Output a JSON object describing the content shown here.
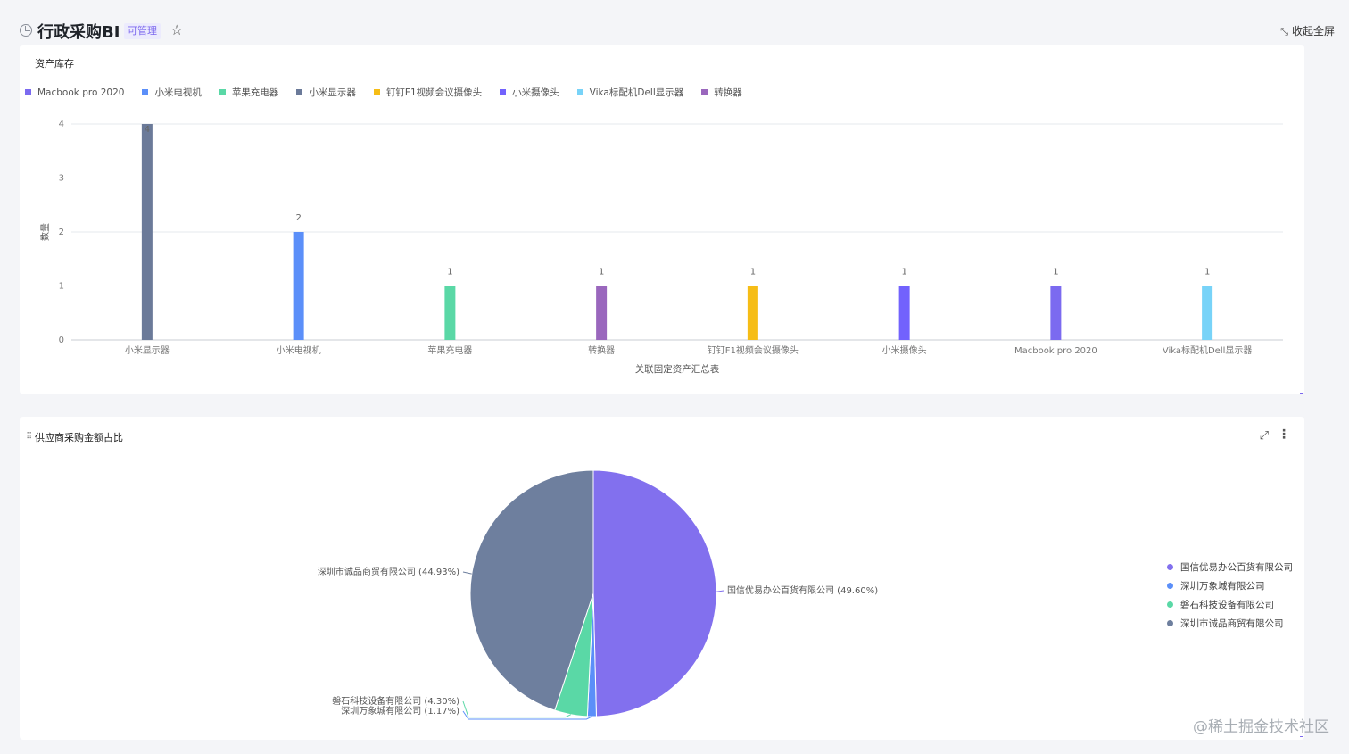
{
  "header": {
    "title": "行政采购BI",
    "badge": "可管理",
    "collapse_label": "收起全屏",
    "icons": {
      "title": "clock-icon",
      "star": "star-icon",
      "collapse": "collapse-icon"
    }
  },
  "bar_card": {
    "title": "资产库存"
  },
  "pie_card": {
    "title": "供应商采购金额占比"
  },
  "watermark": "@稀土掘金技术社区",
  "chart_data": [
    {
      "type": "bar",
      "title": "资产库存",
      "xlabel": "关联固定资产汇总表",
      "ylabel": "数量",
      "ylim": [
        0,
        4
      ],
      "yticks": [
        0,
        1,
        2,
        3,
        4
      ],
      "grid": true,
      "legend_position": "top-left",
      "categories": [
        "小米显示器",
        "小米电视机",
        "苹果充电器",
        "转换器",
        "钉钉F1视频会议摄像头",
        "小米摄像头",
        "Macbook pro 2020",
        "Vika标配机Dell显示器"
      ],
      "values": [
        4,
        2,
        1,
        1,
        1,
        1,
        1,
        1
      ],
      "bar_colors": [
        "#6b7a99",
        "#5b8ff9",
        "#5ad8a6",
        "#9a67bd",
        "#f6bd16",
        "#7262fd",
        "#7b6af0",
        "#78d3f8"
      ],
      "legend": [
        {
          "name": "Macbook pro 2020",
          "color": "#7b6af0"
        },
        {
          "name": "小米电视机",
          "color": "#5b8ff9"
        },
        {
          "name": "苹果充电器",
          "color": "#5ad8a6"
        },
        {
          "name": "小米显示器",
          "color": "#6b7a99"
        },
        {
          "name": "钉钉F1视频会议摄像头",
          "color": "#f6bd16"
        },
        {
          "name": "小米摄像头",
          "color": "#7262fd"
        },
        {
          "name": "Vika标配机Dell显示器",
          "color": "#78d3f8"
        },
        {
          "name": "转换器",
          "color": "#9a67bd"
        }
      ]
    },
    {
      "type": "pie",
      "title": "供应商采购金额占比",
      "legend_position": "right",
      "slices": [
        {
          "name": "国信优易办公百货有限公司",
          "value": 49.6,
          "label": "国信优易办公百货有限公司 (49.60%)",
          "color": "#8270ee"
        },
        {
          "name": "深圳万象城有限公司",
          "value": 1.17,
          "label": "深圳万象城有限公司 (1.17%)",
          "color": "#5b8ff9"
        },
        {
          "name": "磐石科技设备有限公司",
          "value": 4.3,
          "label": "磐石科技设备有限公司 (4.30%)",
          "color": "#5ad8a6"
        },
        {
          "name": "深圳市诚品商贸有限公司",
          "value": 44.93,
          "label": "深圳市诚品商贸有限公司 (44.93%)",
          "color": "#6e7f9e"
        }
      ]
    }
  ]
}
